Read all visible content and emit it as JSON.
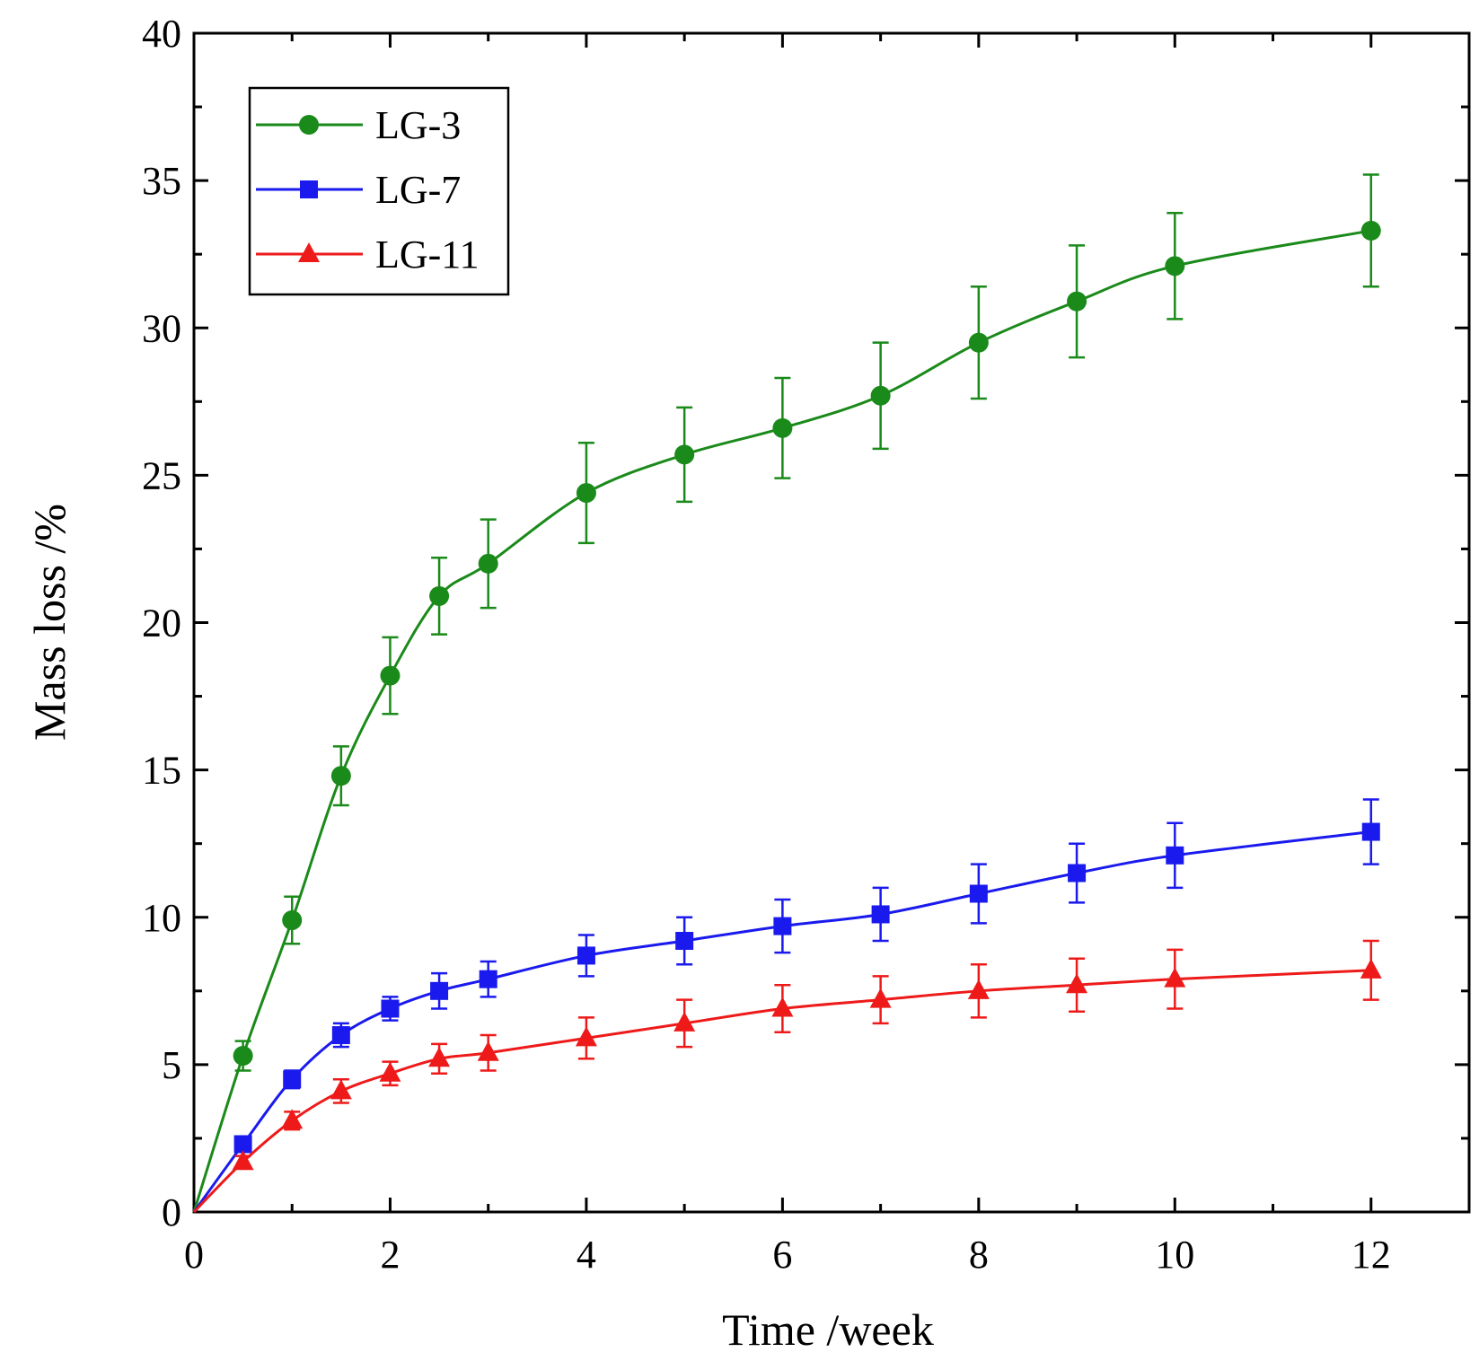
{
  "chart_data": {
    "type": "line",
    "title": "",
    "xlabel": "Time /week",
    "ylabel": "Mass loss /%",
    "xlim": [
      0,
      13
    ],
    "ylim": [
      0,
      40
    ],
    "xticks": [
      0,
      2,
      4,
      6,
      8,
      10,
      12
    ],
    "yticks": [
      0,
      5,
      10,
      15,
      20,
      25,
      30,
      35,
      40
    ],
    "grid": false,
    "legend": "top-left",
    "x": [
      0,
      0.5,
      1,
      1.5,
      2,
      2.5,
      3,
      4,
      5,
      6,
      7,
      8,
      9,
      10,
      12
    ],
    "series": [
      {
        "name": "LG-3",
        "color": "#1a8a1a",
        "marker": "circle",
        "values": [
          0,
          5.3,
          9.9,
          14.8,
          18.2,
          20.9,
          22.0,
          24.4,
          25.7,
          26.6,
          27.7,
          29.5,
          30.9,
          32.1,
          33.3
        ],
        "errors": [
          0,
          0.5,
          0.8,
          1.0,
          1.3,
          1.3,
          1.5,
          1.7,
          1.6,
          1.7,
          1.8,
          1.9,
          1.9,
          1.8,
          1.9
        ]
      },
      {
        "name": "LG-7",
        "color": "#1a1aee",
        "marker": "square",
        "values": [
          0,
          2.3,
          4.5,
          6.0,
          6.9,
          7.5,
          7.9,
          8.7,
          9.2,
          9.7,
          10.1,
          10.8,
          11.5,
          12.1,
          12.9
        ],
        "errors": [
          0,
          0.25,
          0.3,
          0.4,
          0.4,
          0.6,
          0.6,
          0.7,
          0.8,
          0.9,
          0.9,
          1.0,
          1.0,
          1.1,
          1.1
        ]
      },
      {
        "name": "LG-11",
        "color": "#ee1a1a",
        "marker": "triangle",
        "values": [
          0,
          1.7,
          3.1,
          4.1,
          4.7,
          5.2,
          5.4,
          5.9,
          6.4,
          6.9,
          7.2,
          7.5,
          7.7,
          7.9,
          8.2
        ],
        "errors": [
          0,
          0.2,
          0.3,
          0.4,
          0.4,
          0.5,
          0.6,
          0.7,
          0.8,
          0.8,
          0.8,
          0.9,
          0.9,
          1.0,
          1.0
        ]
      }
    ]
  }
}
